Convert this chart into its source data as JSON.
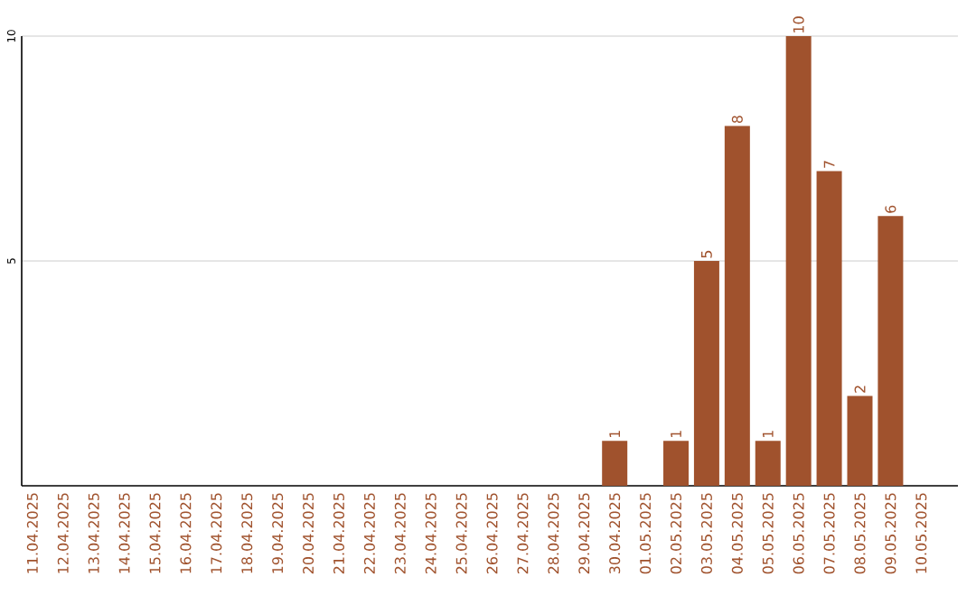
{
  "chart_data": {
    "type": "bar",
    "categories": [
      "11.04.2025",
      "12.04.2025",
      "13.04.2025",
      "14.04.2025",
      "15.04.2025",
      "16.04.2025",
      "17.04.2025",
      "18.04.2025",
      "19.04.2025",
      "20.04.2025",
      "21.04.2025",
      "22.04.2025",
      "23.04.2025",
      "24.04.2025",
      "25.04.2025",
      "26.04.2025",
      "27.04.2025",
      "28.04.2025",
      "29.04.2025",
      "30.04.2025",
      "01.05.2025",
      "02.05.2025",
      "03.05.2025",
      "04.05.2025",
      "05.05.2025",
      "06.05.2025",
      "07.05.2025",
      "08.05.2025",
      "09.05.2025",
      "10.05.2025"
    ],
    "values": [
      0,
      0,
      0,
      0,
      0,
      0,
      0,
      0,
      0,
      0,
      0,
      0,
      0,
      0,
      0,
      0,
      0,
      0,
      0,
      1,
      0,
      1,
      5,
      8,
      1,
      10,
      7,
      2,
      6,
      0
    ],
    "value_labels": [
      null,
      null,
      null,
      null,
      null,
      null,
      null,
      null,
      null,
      null,
      null,
      null,
      null,
      null,
      null,
      null,
      null,
      null,
      null,
      "1",
      null,
      "1",
      "5",
      "8",
      "1",
      "10",
      "7",
      "2",
      "6",
      null
    ],
    "color": "#a0522d",
    "ylim": [
      0,
      10
    ],
    "yticks": [
      5,
      10
    ],
    "grid": "y"
  }
}
